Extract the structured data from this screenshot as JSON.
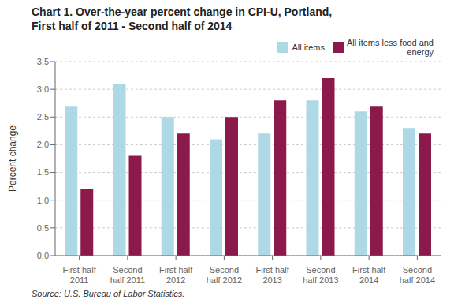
{
  "chart_data": {
    "type": "bar",
    "title": "Chart 1.  Over-the-year percent change in CPI-U, Portland,\nFirst half of 2011 - Second half of 2014",
    "ylabel": "Percent change",
    "annotations": [
      "Source: U.S. Bureau of Labor Statistics."
    ],
    "categories": [
      "First half\n2011",
      "Second\nhalf 2011",
      "First half\n2012",
      "Second\nhalf 2012",
      "First half\n2013",
      "Second\nhalf 2013",
      "First half\n2014",
      "Second\nhalf 2014"
    ],
    "series": [
      {
        "name": "All items",
        "color": "#ADD8E6",
        "values": [
          2.7,
          3.1,
          2.5,
          2.1,
          2.2,
          2.8,
          2.6,
          2.3
        ]
      },
      {
        "name": "All items less food and\nenergy",
        "color": "#8B1A4A",
        "values": [
          1.2,
          1.8,
          2.2,
          2.5,
          2.8,
          3.2,
          2.7,
          2.2
        ]
      }
    ],
    "ylim": [
      0.0,
      3.5
    ],
    "yticks": [
      {
        "value": 0,
        "label": "0.0"
      },
      0.5,
      {
        "value": 1,
        "label": "1.0"
      },
      1.5,
      {
        "value": 2,
        "label": "2.0"
      },
      2.5,
      {
        "value": 3,
        "label": "3.0"
      },
      3.5
    ],
    "grid": true,
    "legend": "upper right"
  }
}
